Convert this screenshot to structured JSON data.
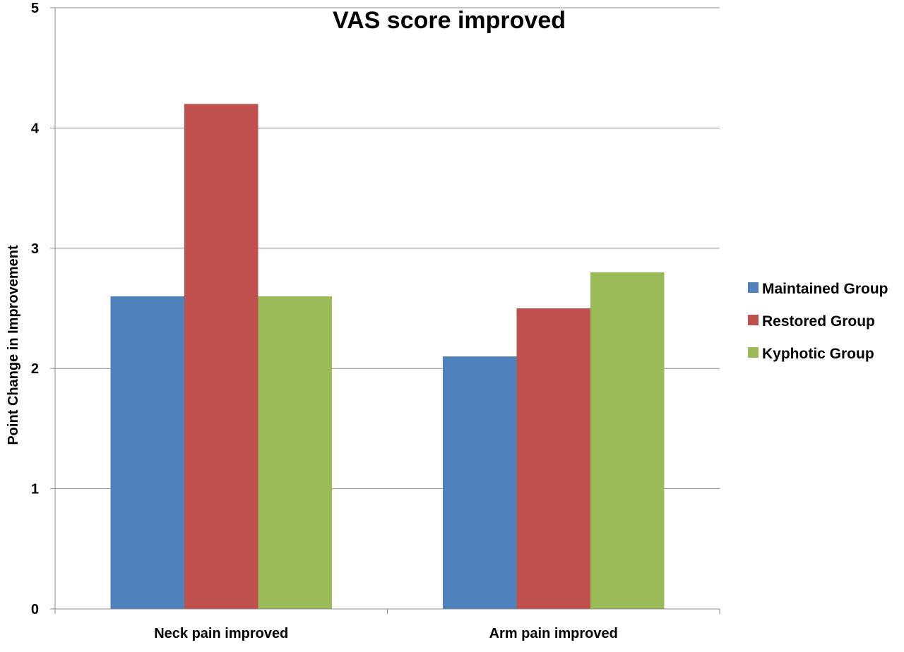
{
  "chart_data": {
    "type": "bar",
    "title": "VAS score improved",
    "xlabel": "",
    "ylabel": "Point Change in Improvement",
    "categories": [
      "Neck pain improved",
      "Arm pain improved"
    ],
    "series": [
      {
        "name": "Maintained Group",
        "values": [
          2.6,
          2.1
        ],
        "color": "#4f81bd"
      },
      {
        "name": "Restored Group",
        "values": [
          4.2,
          2.5
        ],
        "color": "#c0504d"
      },
      {
        "name": "Kyphotic Group",
        "values": [
          2.6,
          2.8
        ],
        "color": "#9bbb59"
      }
    ],
    "ylim": [
      0,
      5
    ],
    "yticks": [
      "0",
      "1",
      "2",
      "3",
      "4",
      "5"
    ],
    "grid": true,
    "legend_position": "right"
  }
}
